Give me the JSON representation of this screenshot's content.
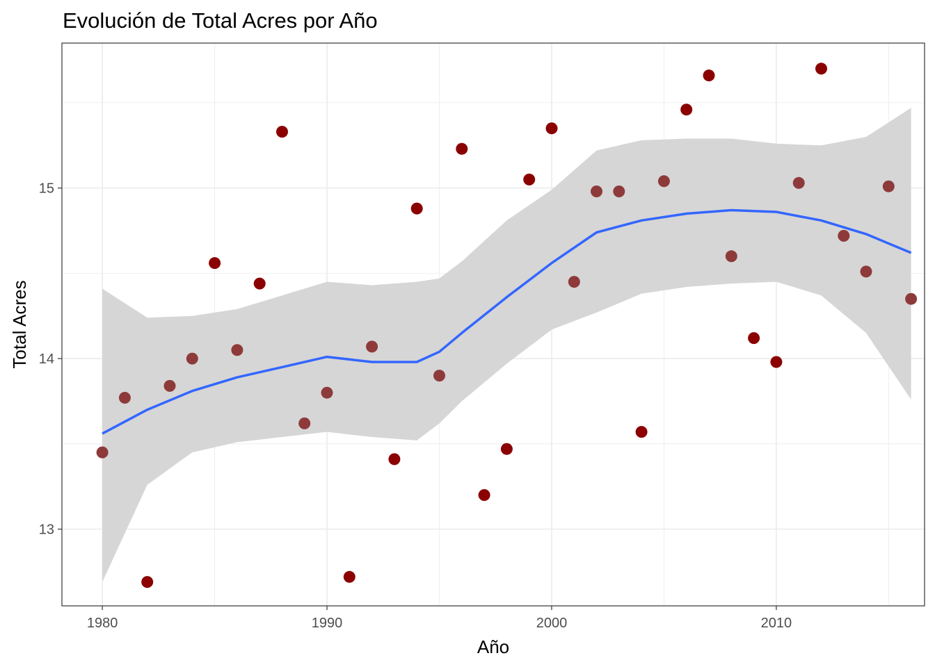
{
  "chart_data": {
    "type": "scatter",
    "title": "Evolución de Total Acres por Año",
    "xlabel": "Año",
    "ylabel": "Total Acres",
    "xlim": [
      1978.2,
      2016.6
    ],
    "ylim": [
      12.55,
      15.85
    ],
    "x_ticks": [
      1980,
      1990,
      2000,
      2010
    ],
    "y_ticks": [
      13,
      14,
      15
    ],
    "x_tick_labels": [
      "1980",
      "1990",
      "2000",
      "2010"
    ],
    "y_tick_labels": [
      "13",
      "14",
      "15"
    ],
    "grid": true,
    "legend": "none",
    "colors": {
      "point_inside_band": "#8e3a3a",
      "point_outside_band": "#8b0000",
      "smooth_line": "#3366ff",
      "confidence_band": "#d6d6d6",
      "grid": "#ebebeb",
      "panel_border": "#333333"
    },
    "points": [
      {
        "x": 1980,
        "y": 13.45
      },
      {
        "x": 1981,
        "y": 13.77
      },
      {
        "x": 1982,
        "y": 12.69
      },
      {
        "x": 1983,
        "y": 13.84
      },
      {
        "x": 1984,
        "y": 14.0
      },
      {
        "x": 1985,
        "y": 14.56
      },
      {
        "x": 1986,
        "y": 14.05
      },
      {
        "x": 1987,
        "y": 14.44
      },
      {
        "x": 1988,
        "y": 15.33
      },
      {
        "x": 1989,
        "y": 13.62
      },
      {
        "x": 1990,
        "y": 13.8
      },
      {
        "x": 1991,
        "y": 12.72
      },
      {
        "x": 1992,
        "y": 14.07
      },
      {
        "x": 1993,
        "y": 13.41
      },
      {
        "x": 1994,
        "y": 14.88
      },
      {
        "x": 1995,
        "y": 13.9
      },
      {
        "x": 1996,
        "y": 15.23
      },
      {
        "x": 1997,
        "y": 13.2
      },
      {
        "x": 1998,
        "y": 13.47
      },
      {
        "x": 1999,
        "y": 15.05
      },
      {
        "x": 2000,
        "y": 15.35
      },
      {
        "x": 2001,
        "y": 14.45
      },
      {
        "x": 2002,
        "y": 14.98
      },
      {
        "x": 2003,
        "y": 14.98
      },
      {
        "x": 2004,
        "y": 13.57
      },
      {
        "x": 2005,
        "y": 15.04
      },
      {
        "x": 2006,
        "y": 15.46
      },
      {
        "x": 2007,
        "y": 15.66
      },
      {
        "x": 2008,
        "y": 14.6
      },
      {
        "x": 2009,
        "y": 14.12
      },
      {
        "x": 2010,
        "y": 13.98
      },
      {
        "x": 2011,
        "y": 15.03
      },
      {
        "x": 2012,
        "y": 15.7
      },
      {
        "x": 2013,
        "y": 14.72
      },
      {
        "x": 2014,
        "y": 14.51
      },
      {
        "x": 2015,
        "y": 15.01
      },
      {
        "x": 2016,
        "y": 14.35
      }
    ],
    "smooth": {
      "method": "loess",
      "x": [
        1980,
        1982,
        1984,
        1986,
        1988,
        1990,
        1992,
        1994,
        1995,
        1996,
        1998,
        2000,
        2002,
        2004,
        2006,
        2008,
        2010,
        2012,
        2014,
        2016
      ],
      "y": [
        13.56,
        13.7,
        13.81,
        13.89,
        13.95,
        14.01,
        13.98,
        13.98,
        14.04,
        14.15,
        14.36,
        14.56,
        14.74,
        14.81,
        14.85,
        14.87,
        14.86,
        14.81,
        14.73,
        14.62
      ],
      "lower": [
        12.69,
        13.26,
        13.45,
        13.51,
        13.54,
        13.57,
        13.54,
        13.52,
        13.62,
        13.75,
        13.97,
        14.17,
        14.27,
        14.38,
        14.42,
        14.44,
        14.45,
        14.37,
        14.15,
        13.76
      ],
      "upper": [
        14.41,
        14.24,
        14.25,
        14.29,
        14.37,
        14.45,
        14.43,
        14.45,
        14.47,
        14.57,
        14.81,
        14.99,
        15.22,
        15.28,
        15.29,
        15.29,
        15.26,
        15.25,
        15.3,
        15.47
      ]
    }
  }
}
